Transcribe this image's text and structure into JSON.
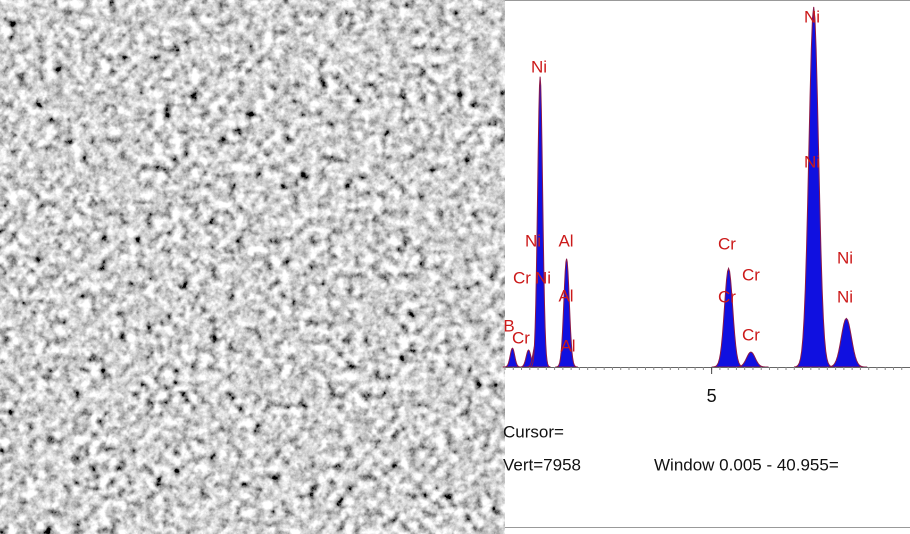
{
  "spectrum": {
    "type": "area",
    "xlim": [
      0,
      9.8
    ],
    "xticks": [
      5
    ],
    "ylim": [
      0,
      7958
    ],
    "peaks": [
      {
        "energy": 0.18,
        "counts": 410
      },
      {
        "energy": 0.57,
        "counts": 370
      },
      {
        "energy": 0.74,
        "counts": 500
      },
      {
        "energy": 0.85,
        "counts": 6330
      },
      {
        "energy": 1.49,
        "counts": 2360
      },
      {
        "energy": 5.41,
        "counts": 2150
      },
      {
        "energy": 5.95,
        "counts": 325
      },
      {
        "energy": 7.47,
        "counts": 7850
      },
      {
        "energy": 8.26,
        "counts": 1060
      }
    ],
    "labels": [
      "B",
      "Cr",
      "Ni",
      "Ni",
      "Cr",
      "Ni",
      "Al",
      "Al",
      "Al",
      "Cr",
      "Cr",
      "Cr",
      "Cr",
      "Ni",
      "Ni",
      "Ni",
      "Ni"
    ]
  },
  "footer": {
    "cursor": "Cursor=",
    "vert": "Vert=7958",
    "window": "Window 0.005 - 40.955="
  }
}
